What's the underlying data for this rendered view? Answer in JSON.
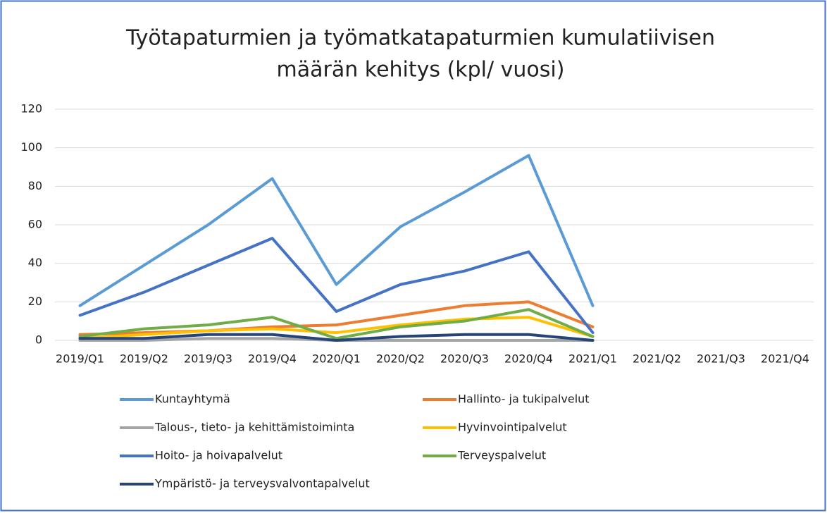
{
  "chart_data": {
    "type": "line",
    "title": [
      "Työtapaturmien ja työmatkatapaturmien kumulatiivisen",
      "määrän kehitys (kpl/ vuosi)"
    ],
    "categories": [
      "2019/Q1",
      "2019/Q2",
      "2019/Q3",
      "2019/Q4",
      "2020/Q1",
      "2020/Q2",
      "2020/Q3",
      "2020/Q4",
      "2021/Q1",
      "2021/Q2",
      "2021/Q3",
      "2021/Q4"
    ],
    "series": [
      {
        "name": "Kuntayhtymä",
        "color": "#5b9bd5",
        "values": [
          18,
          39,
          60,
          84,
          29,
          59,
          77,
          96,
          18,
          null,
          null,
          null
        ]
      },
      {
        "name": "Hallinto- ja tukipalvelut",
        "color": "#ed7d31",
        "values": [
          3,
          4,
          5,
          7,
          8,
          13,
          18,
          20,
          7,
          null,
          null,
          null
        ]
      },
      {
        "name": "Talous-, tieto- ja kehittämistoiminta",
        "color": "#a5a5a5",
        "values": [
          0,
          0,
          1,
          1,
          0,
          0,
          0,
          0,
          0,
          null,
          null,
          null
        ]
      },
      {
        "name": "Hyvinvointipalvelut",
        "color": "#ffc000",
        "values": [
          1,
          3,
          5,
          6,
          4,
          8,
          11,
          12,
          2,
          null,
          null,
          null
        ]
      },
      {
        "name": "Hoito- ja hoivapalvelut",
        "color": "#4472c4",
        "values": [
          13,
          25,
          39,
          53,
          15,
          29,
          36,
          46,
          4,
          null,
          null,
          null
        ]
      },
      {
        "name": "Terveyspalvelut",
        "color": "#70ad47",
        "values": [
          2,
          6,
          8,
          12,
          1,
          7,
          10,
          16,
          2,
          null,
          null,
          null
        ]
      },
      {
        "name": "Ympäristö- ja terveysvalvontapalvelut",
        "color": "#264478",
        "values": [
          1,
          1,
          3,
          3,
          0,
          2,
          3,
          3,
          0,
          null,
          null,
          null
        ]
      }
    ],
    "ylim": [
      0,
      120
    ],
    "yticks": [
      0,
      20,
      40,
      60,
      80,
      100,
      120
    ],
    "grid": true,
    "legend": "bottom"
  }
}
